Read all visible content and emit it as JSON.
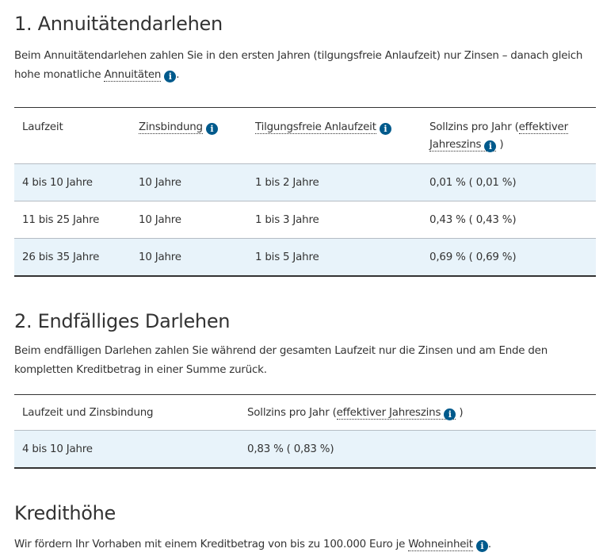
{
  "section1": {
    "title": "1. Annuitätendarlehen",
    "intro_text": "Beim Annuitätendarlehen zahlen Sie in den ersten Jahren (tilgungsfreie Anlaufzeit) nur Zinsen – danach gleich hohe monatliche",
    "intro_link": "Annuitäten",
    "intro_end": ".",
    "headers": {
      "laufzeit": "Laufzeit",
      "zinsbindung": "Zinsbindung",
      "anlaufzeit": "Tilgungsfreie Anlaufzeit",
      "sollzins_prefix": "Sollzins pro Jahr (",
      "sollzins_link": "effektiver Jahreszins",
      "sollzins_suffix": ")"
    },
    "rows": [
      {
        "laufzeit": "4 bis 10 Jahre",
        "zinsbindung": "10 Jahre",
        "anlaufzeit": "1 bis 2 Jahre",
        "zins": "0,01 % ( 0,01 %)"
      },
      {
        "laufzeit": "11 bis 25 Jahre",
        "zinsbindung": "10 Jahre",
        "anlaufzeit": "1 bis 3 Jahre",
        "zins": "0,43 % ( 0,43 %)"
      },
      {
        "laufzeit": "26 bis 35 Jahre",
        "zinsbindung": "10 Jahre",
        "anlaufzeit": "1 bis 5 Jahre",
        "zins": "0,69 % ( 0,69 %)"
      }
    ]
  },
  "section2": {
    "title": "2. Endfälliges Darlehen",
    "intro_text": "Beim endfälligen Darlehen zahlen Sie während der gesamten Laufzeit nur die Zinsen und am Ende den kompletten Kreditbetrag in einer Summe zurück.",
    "headers": {
      "laufzeit": "Laufzeit und Zinsbindung",
      "sollzins_prefix": "Sollzins pro Jahr (",
      "sollzins_link": "effektiver Jahreszins",
      "sollzins_suffix": ")"
    },
    "rows": [
      {
        "laufzeit": "4 bis 10 Jahre",
        "zins": "0,83 % ( 0,83 %)"
      }
    ]
  },
  "section3": {
    "title": "Kredithöhe",
    "text": "Wir fördern Ihr Vorhaben mit einem Kreditbetrag von bis zu 100.000 Euro je",
    "link": "Wohneinheit",
    "end": "."
  },
  "info_icon": "i",
  "colors": {
    "accent": "#005a8c",
    "row_alt": "#e8f3fa"
  }
}
